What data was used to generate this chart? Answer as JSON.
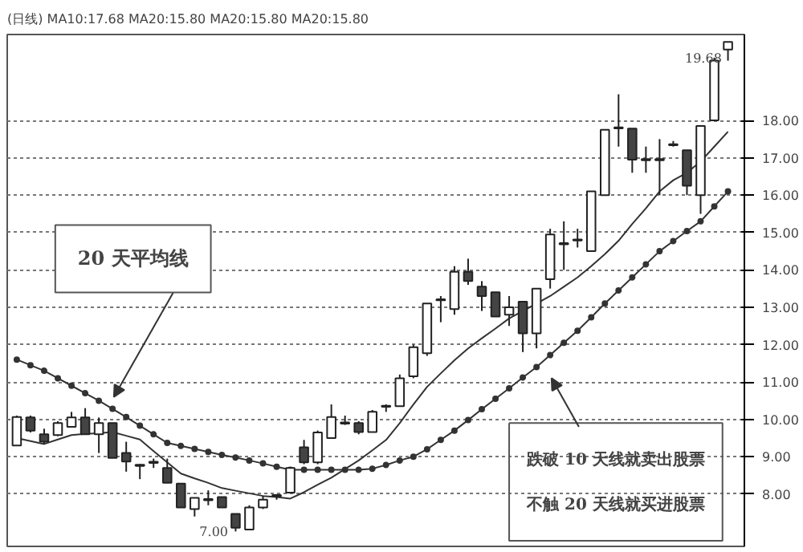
{
  "chart_data": {
    "type": "candlestick",
    "title": "(日线) MA10:17.68 MA20:15.80 MA20:15.80 MA20:15.80",
    "categories": [
      null,
      null,
      null,
      null,
      null,
      null,
      null,
      null,
      null,
      null,
      null,
      null,
      null,
      null,
      null,
      null,
      null,
      null,
      null,
      null,
      null,
      null,
      null,
      null,
      null,
      null,
      null,
      null,
      null,
      null,
      null,
      null,
      null,
      null,
      null,
      null,
      null,
      null,
      null,
      null,
      null,
      null,
      null,
      null,
      null,
      null,
      null,
      null,
      null,
      null,
      null,
      null,
      null
    ],
    "ohlc": [
      [
        9.3,
        10.1,
        9.3,
        10.06
      ],
      [
        10.05,
        10.1,
        9.65,
        9.7
      ],
      [
        9.6,
        9.75,
        9.35,
        9.4
      ],
      [
        9.58,
        9.95,
        9.55,
        9.9
      ],
      [
        9.8,
        10.2,
        9.8,
        10.05
      ],
      [
        10.05,
        10.3,
        9.6,
        9.6
      ],
      [
        9.6,
        10.05,
        9.1,
        9.9
      ],
      [
        9.9,
        9.9,
        8.97,
        8.97
      ],
      [
        9.1,
        9.4,
        8.6,
        8.87
      ],
      [
        8.77,
        8.8,
        8.4,
        8.77
      ],
      [
        8.85,
        8.95,
        8.7,
        8.85
      ],
      [
        8.7,
        8.95,
        8.3,
        8.3
      ],
      [
        8.28,
        8.28,
        7.64,
        7.64
      ],
      [
        7.6,
        7.9,
        7.4,
        7.9
      ],
      [
        7.85,
        8.1,
        7.7,
        7.85
      ],
      [
        7.92,
        7.92,
        7.64,
        7.64
      ],
      [
        7.47,
        7.47,
        7.0,
        7.1
      ],
      [
        7.05,
        7.7,
        7.05,
        7.64
      ],
      [
        7.64,
        7.95,
        7.6,
        7.85
      ],
      [
        7.95,
        8.0,
        7.85,
        7.97
      ],
      [
        8.04,
        8.7,
        8.04,
        8.7
      ],
      [
        9.25,
        9.45,
        8.8,
        8.85
      ],
      [
        8.85,
        9.7,
        8.8,
        9.65
      ],
      [
        9.5,
        10.4,
        9.5,
        10.06
      ],
      [
        9.9,
        10.1,
        9.85,
        9.9
      ],
      [
        9.9,
        9.95,
        9.6,
        9.66
      ],
      [
        9.66,
        10.25,
        9.66,
        10.2
      ],
      [
        10.35,
        10.4,
        10.2,
        10.35
      ],
      [
        10.35,
        11.2,
        10.35,
        11.1
      ],
      [
        11.15,
        12.0,
        11.1,
        11.93
      ],
      [
        11.77,
        13.1,
        11.7,
        13.1
      ],
      [
        13.2,
        13.3,
        12.6,
        13.2
      ],
      [
        12.95,
        14.1,
        12.8,
        13.95
      ],
      [
        13.95,
        14.3,
        13.6,
        13.7
      ],
      [
        13.55,
        13.7,
        12.9,
        13.3
      ],
      [
        13.4,
        13.4,
        12.75,
        12.75
      ],
      [
        12.8,
        13.3,
        12.5,
        13.0
      ],
      [
        13.15,
        13.15,
        11.8,
        12.3
      ],
      [
        12.3,
        13.5,
        11.9,
        13.5
      ],
      [
        13.75,
        15.1,
        13.5,
        14.95
      ],
      [
        14.7,
        15.3,
        14.0,
        14.7
      ],
      [
        14.8,
        15.1,
        14.6,
        14.8
      ],
      [
        14.5,
        16.1,
        14.5,
        16.1
      ],
      [
        16.0,
        17.75,
        16.0,
        17.75
      ],
      [
        17.8,
        18.7,
        17.3,
        17.8
      ],
      [
        17.78,
        17.78,
        16.6,
        16.95
      ],
      [
        16.95,
        17.3,
        16.6,
        16.95
      ],
      [
        16.95,
        17.5,
        16.0,
        16.95
      ],
      [
        17.35,
        17.45,
        17.3,
        17.35
      ],
      [
        17.2,
        17.2,
        16.0,
        16.25
      ],
      [
        16.0,
        17.85,
        15.5,
        17.85
      ],
      [
        18.0,
        19.68,
        18.0,
        19.6
      ],
      [
        19.9,
        20.1,
        19.6,
        20.1
      ]
    ],
    "series": [
      {
        "type": "line",
        "color": "#333333",
        "marker": "none",
        "values": [
          9.5,
          9.42,
          9.34,
          9.46,
          9.58,
          9.61,
          9.63,
          9.66,
          9.56,
          9.46,
          9.15,
          8.85,
          8.55,
          8.42,
          8.3,
          8.16,
          8.09,
          8.02,
          7.95,
          7.92,
          7.88,
          8.05,
          8.25,
          8.44,
          8.67,
          8.9,
          9.17,
          9.45,
          9.9,
          10.4,
          10.87,
          11.23,
          11.58,
          11.9,
          12.17,
          12.43,
          12.7,
          12.9,
          13.1,
          13.3,
          13.55,
          13.8,
          14.1,
          14.42,
          14.78,
          15.23,
          15.65,
          16.1,
          16.4,
          16.6,
          16.9,
          17.3,
          17.7
        ]
      },
      {
        "type": "line",
        "color": "#333333",
        "marker": "circle",
        "values": [
          11.6,
          11.45,
          11.3,
          11.1,
          10.9,
          10.7,
          10.5,
          10.28,
          10.06,
          9.83,
          9.6,
          9.37,
          9.29,
          9.21,
          9.13,
          9.05,
          8.98,
          8.9,
          8.82,
          8.73,
          8.65,
          8.65,
          8.65,
          8.65,
          8.65,
          8.65,
          8.68,
          8.78,
          8.9,
          9.0,
          9.2,
          9.45,
          9.7,
          9.98,
          10.27,
          10.55,
          10.83,
          11.12,
          11.4,
          11.72,
          12.05,
          12.37,
          12.73,
          13.1,
          13.45,
          13.8,
          14.15,
          14.5,
          14.77,
          15.04,
          15.3,
          15.7,
          16.1
        ]
      }
    ],
    "colors": [
      "#ffffff",
      "#444444",
      "#444444",
      "#ffffff",
      "#ffffff",
      "#444444",
      "#ffffff",
      "#444444",
      "#444444",
      "#ffffff",
      "#ffffff",
      "#444444",
      "#444444",
      "#ffffff",
      "#ffffff",
      "#444444",
      "#444444",
      "#ffffff",
      "#ffffff",
      "#ffffff",
      "#ffffff",
      "#444444",
      "#ffffff",
      "#ffffff",
      "#ffffff",
      "#444444",
      "#ffffff",
      "#ffffff",
      "#ffffff",
      "#ffffff",
      "#ffffff",
      "#ffffff",
      "#ffffff",
      "#444444",
      "#444444",
      "#444444",
      "#ffffff",
      "#444444",
      "#ffffff",
      "#ffffff",
      "#ffffff",
      "#ffffff",
      "#ffffff",
      "#ffffff",
      "#ffffff",
      "#444444",
      "#ffffff",
      "#ffffff",
      "#ffffff",
      "#444444",
      "#ffffff",
      "#ffffff",
      "#ffffff"
    ],
    "ylim": [
      6.6,
      20.3
    ],
    "yticks": [
      {
        "value": 8,
        "label": "8.00"
      },
      {
        "value": 9,
        "label": "9.00"
      },
      {
        "value": 10,
        "label": "10.00"
      },
      {
        "value": 11,
        "label": "11.00"
      },
      {
        "value": 12,
        "label": "12.00"
      },
      {
        "value": 13,
        "label": "13.00"
      },
      {
        "value": 14,
        "label": "14.00"
      },
      {
        "value": 15,
        "label": "15.00"
      },
      {
        "value": 16,
        "label": "16.00"
      },
      {
        "value": 17,
        "label": "17.00"
      },
      {
        "value": 18,
        "label": "18.00"
      }
    ],
    "grid": "y",
    "tick_labels": "y",
    "annotations": [
      "20 天平均线",
      "跌破 10 天线就卖出股票",
      "不触 20 天线就买进股票",
      {
        "text": "19.68",
        "y": 19.68
      },
      "7.00"
    ]
  }
}
